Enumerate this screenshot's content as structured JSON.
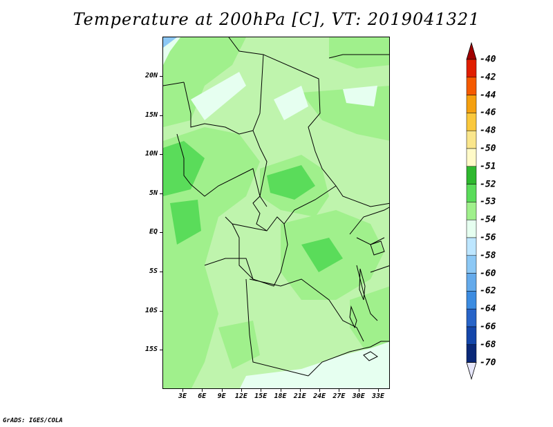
{
  "title": "Temperature at 200hPa [C], VT: 2019041321",
  "credit": "GrADS: IGES/COLA",
  "y_axis": {
    "ticks": [
      "20N",
      "15N",
      "10N",
      "5N",
      "EQ",
      "5S",
      "10S",
      "15S"
    ]
  },
  "x_axis": {
    "ticks": [
      "3E",
      "6E",
      "9E",
      "12E",
      "15E",
      "18E",
      "21E",
      "24E",
      "27E",
      "30E",
      "33E"
    ]
  },
  "colorbar": {
    "labels": [
      "-40",
      "-42",
      "-44",
      "-46",
      "-48",
      "-50",
      "-51",
      "-52",
      "-53",
      "-54",
      "-56",
      "-58",
      "-60",
      "-62",
      "-64",
      "-66",
      "-68",
      "-70"
    ],
    "colors": [
      "#a00000",
      "#e01e00",
      "#f55a00",
      "#f5a00f",
      "#fac83c",
      "#fae68c",
      "#fffac8",
      "#2eb82e",
      "#5adc5a",
      "#a0f08c",
      "#e6fff0",
      "#bde6ff",
      "#8cc8f5",
      "#64aaeb",
      "#3c8ce1",
      "#2864c8",
      "#1446aa",
      "#0a2878",
      "#e6e6fa"
    ]
  },
  "map_colors": {
    "band_minus53": "#a0f08c",
    "band_minus52": "#5adc5a",
    "band_minus54": "#bff4ad",
    "band_minus56": "#e6fff0"
  }
}
